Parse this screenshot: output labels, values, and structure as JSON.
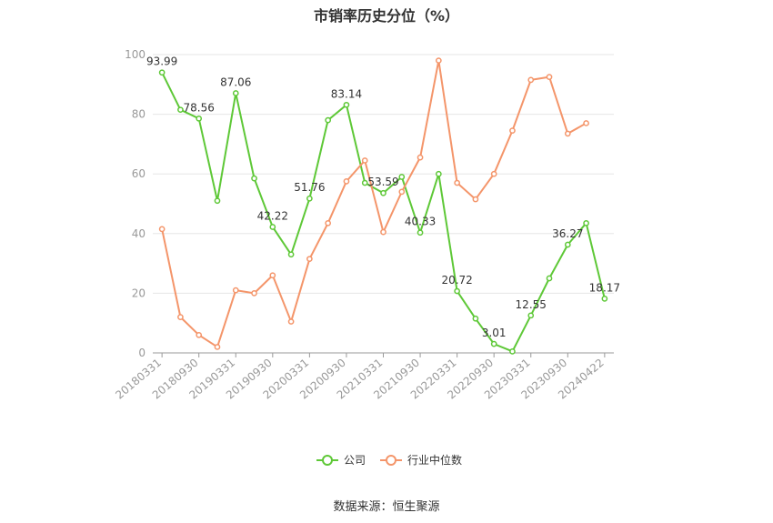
{
  "chart_data": {
    "type": "line",
    "title": "市销率历史分位（%）",
    "source": "数据来源：恒生聚源",
    "x_tick_labels": [
      "20180331",
      "20180930",
      "20190331",
      "20190930",
      "20200331",
      "20200930",
      "20210331",
      "20210930",
      "20220331",
      "20220930",
      "20230331",
      "20230930",
      "20240422"
    ],
    "ylim": [
      0,
      100
    ],
    "y_ticks": [
      0,
      20,
      40,
      60,
      80,
      100
    ],
    "grid": true,
    "legend_position": "bottom",
    "series": [
      {
        "name": "公司",
        "color": "#5ec837",
        "values": [
          93.99,
          81.5,
          78.56,
          51.0,
          87.06,
          58.5,
          42.22,
          33.0,
          51.76,
          78.0,
          83.14,
          57.0,
          53.59,
          59.0,
          40.33,
          60.0,
          20.72,
          11.5,
          3.01,
          0.5,
          12.55,
          25.0,
          36.27,
          43.5,
          18.17
        ],
        "labels": {
          "0": "93.99",
          "2": "78.56",
          "4": "87.06",
          "6": "42.22",
          "8": "51.76",
          "10": "83.14",
          "12": "53.59",
          "14": "40.33",
          "16": "20.72",
          "18": "3.01",
          "20": "12.55",
          "22": "36.27",
          "24": "18.17"
        }
      },
      {
        "name": "行业中位数",
        "color": "#f4956a",
        "values": [
          41.5,
          12.0,
          6.0,
          2.0,
          21.0,
          20.0,
          26.0,
          10.5,
          31.5,
          43.5,
          57.5,
          64.5,
          40.5,
          54.0,
          65.5,
          98.0,
          57.0,
          51.5,
          60.0,
          74.5,
          91.5,
          92.5,
          73.5,
          77.0
        ]
      }
    ]
  }
}
